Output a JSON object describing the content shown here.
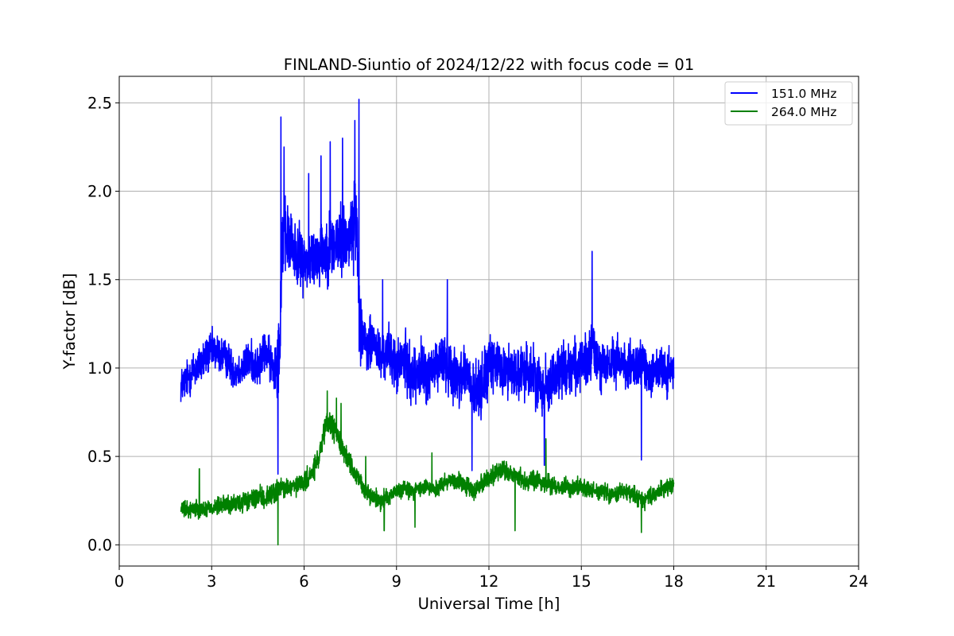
{
  "chart_data": {
    "type": "line",
    "title": "FINLAND-Siuntio of 2024/12/22 with focus code = 01",
    "xlabel": "Universal Time [h]",
    "ylabel": "Y-factor [dB]",
    "xlim": [
      0,
      24
    ],
    "ylim": [
      -0.12,
      2.65
    ],
    "xticks": [
      0,
      3,
      6,
      9,
      12,
      15,
      18,
      21,
      24
    ],
    "yticks": [
      0.0,
      0.5,
      1.0,
      1.5,
      2.0,
      2.5
    ],
    "xtick_labels": [
      "0",
      "3",
      "6",
      "9",
      "12",
      "15",
      "18",
      "21",
      "24"
    ],
    "ytick_labels": [
      "0.0",
      "0.5",
      "1.0",
      "1.5",
      "2.0",
      "2.5"
    ],
    "grid": true,
    "legend_position": "top-right",
    "series": [
      {
        "name": "151.0 MHz",
        "color": "#0000ff",
        "x": [
          2.0,
          2.25,
          2.5,
          2.75,
          3.0,
          3.25,
          3.5,
          3.75,
          4.0,
          4.25,
          4.5,
          4.75,
          5.0,
          5.1,
          5.2,
          5.3,
          5.5,
          5.75,
          6.0,
          6.25,
          6.5,
          6.75,
          7.0,
          7.25,
          7.5,
          7.7,
          7.8,
          8.0,
          8.25,
          8.5,
          8.75,
          9.0,
          9.25,
          9.5,
          9.75,
          10.0,
          10.25,
          10.5,
          10.75,
          11.0,
          11.25,
          11.5,
          11.75,
          12.0,
          12.25,
          12.5,
          12.75,
          13.0,
          13.25,
          13.5,
          13.75,
          14.0,
          14.25,
          14.5,
          14.75,
          15.0,
          15.25,
          15.4,
          15.5,
          15.75,
          16.0,
          16.25,
          16.5,
          16.75,
          17.0,
          17.25,
          17.5,
          17.75,
          18.0
        ],
        "values": [
          0.9,
          0.95,
          1.0,
          1.05,
          1.1,
          1.08,
          1.05,
          0.98,
          1.0,
          1.05,
          1.0,
          1.1,
          1.0,
          1.05,
          1.1,
          1.75,
          1.72,
          1.65,
          1.6,
          1.62,
          1.65,
          1.68,
          1.7,
          1.72,
          1.75,
          1.85,
          1.3,
          1.1,
          1.15,
          1.05,
          1.1,
          1.0,
          1.05,
          0.95,
          1.0,
          0.95,
          1.0,
          1.05,
          1.0,
          0.95,
          0.98,
          0.85,
          0.9,
          1.0,
          1.02,
          0.98,
          1.0,
          0.95,
          1.0,
          0.95,
          0.9,
          0.92,
          0.98,
          1.0,
          1.02,
          1.0,
          1.05,
          1.1,
          1.05,
          1.0,
          1.02,
          1.05,
          1.0,
          1.0,
          1.02,
          0.98,
          1.0,
          0.95,
          1.0
        ],
        "noise": [
          0.15,
          0.16,
          0.17,
          0.17,
          0.16,
          0.16,
          0.15,
          0.15,
          0.15,
          0.16,
          0.17,
          0.17,
          0.17,
          0.3,
          0.33,
          0.33,
          0.27,
          0.25,
          0.25,
          0.25,
          0.27,
          0.27,
          0.3,
          0.3,
          0.27,
          0.35,
          0.33,
          0.22,
          0.22,
          0.2,
          0.2,
          0.22,
          0.23,
          0.23,
          0.23,
          0.23,
          0.23,
          0.23,
          0.23,
          0.23,
          0.25,
          0.25,
          0.25,
          0.23,
          0.22,
          0.22,
          0.22,
          0.22,
          0.23,
          0.23,
          0.23,
          0.23,
          0.22,
          0.22,
          0.22,
          0.22,
          0.22,
          0.25,
          0.22,
          0.2,
          0.2,
          0.2,
          0.2,
          0.2,
          0.2,
          0.2,
          0.2,
          0.2,
          0.2
        ],
        "spikes": [
          [
            5.25,
            2.42
          ],
          [
            5.35,
            2.25
          ],
          [
            5.15,
            0.4
          ],
          [
            6.15,
            2.1
          ],
          [
            6.55,
            2.2
          ],
          [
            6.85,
            2.28
          ],
          [
            7.25,
            2.3
          ],
          [
            7.78,
            2.52
          ],
          [
            7.65,
            2.4
          ],
          [
            15.35,
            1.66
          ],
          [
            8.55,
            1.5
          ],
          [
            10.65,
            1.5
          ],
          [
            16.95,
            0.48
          ],
          [
            11.45,
            0.42
          ],
          [
            13.8,
            0.45
          ]
        ]
      },
      {
        "name": "264.0 MHz",
        "color": "#008000",
        "x": [
          2.0,
          2.25,
          2.5,
          2.75,
          3.0,
          3.25,
          3.5,
          3.75,
          4.0,
          4.25,
          4.5,
          4.75,
          5.0,
          5.25,
          5.5,
          5.75,
          6.0,
          6.25,
          6.5,
          6.75,
          7.0,
          7.25,
          7.5,
          7.75,
          8.0,
          8.25,
          8.5,
          8.75,
          9.0,
          9.25,
          9.5,
          9.75,
          10.0,
          10.25,
          10.5,
          10.75,
          11.0,
          11.25,
          11.5,
          11.75,
          12.0,
          12.25,
          12.5,
          12.75,
          13.0,
          13.25,
          13.5,
          13.75,
          14.0,
          14.25,
          14.5,
          14.75,
          15.0,
          15.25,
          15.5,
          15.75,
          16.0,
          16.25,
          16.5,
          16.75,
          17.0,
          17.25,
          17.5,
          17.75,
          18.0
        ],
        "values": [
          0.2,
          0.2,
          0.21,
          0.2,
          0.21,
          0.22,
          0.23,
          0.23,
          0.24,
          0.25,
          0.27,
          0.26,
          0.3,
          0.32,
          0.32,
          0.33,
          0.35,
          0.4,
          0.5,
          0.7,
          0.65,
          0.55,
          0.45,
          0.38,
          0.3,
          0.27,
          0.25,
          0.28,
          0.3,
          0.32,
          0.3,
          0.32,
          0.33,
          0.31,
          0.35,
          0.37,
          0.36,
          0.33,
          0.3,
          0.35,
          0.38,
          0.4,
          0.42,
          0.4,
          0.38,
          0.35,
          0.37,
          0.35,
          0.34,
          0.33,
          0.33,
          0.32,
          0.33,
          0.32,
          0.3,
          0.3,
          0.28,
          0.3,
          0.3,
          0.28,
          0.25,
          0.27,
          0.3,
          0.32,
          0.33
        ],
        "noise": [
          0.06,
          0.07,
          0.07,
          0.07,
          0.07,
          0.07,
          0.08,
          0.08,
          0.08,
          0.08,
          0.08,
          0.09,
          0.09,
          0.09,
          0.08,
          0.08,
          0.08,
          0.09,
          0.1,
          0.1,
          0.1,
          0.09,
          0.08,
          0.07,
          0.07,
          0.07,
          0.07,
          0.07,
          0.07,
          0.07,
          0.07,
          0.07,
          0.07,
          0.07,
          0.08,
          0.08,
          0.08,
          0.08,
          0.08,
          0.08,
          0.08,
          0.08,
          0.08,
          0.08,
          0.08,
          0.08,
          0.08,
          0.08,
          0.07,
          0.07,
          0.07,
          0.07,
          0.07,
          0.07,
          0.07,
          0.07,
          0.07,
          0.07,
          0.07,
          0.07,
          0.07,
          0.07,
          0.07,
          0.07,
          0.07
        ],
        "spikes": [
          [
            2.6,
            0.43
          ],
          [
            5.15,
            0.0
          ],
          [
            6.75,
            0.87
          ],
          [
            7.05,
            0.83
          ],
          [
            7.2,
            0.8
          ],
          [
            8.0,
            0.5
          ],
          [
            8.6,
            0.08
          ],
          [
            9.6,
            0.1
          ],
          [
            10.15,
            0.52
          ],
          [
            12.85,
            0.08
          ],
          [
            13.85,
            0.6
          ],
          [
            16.95,
            0.07
          ]
        ]
      }
    ]
  }
}
